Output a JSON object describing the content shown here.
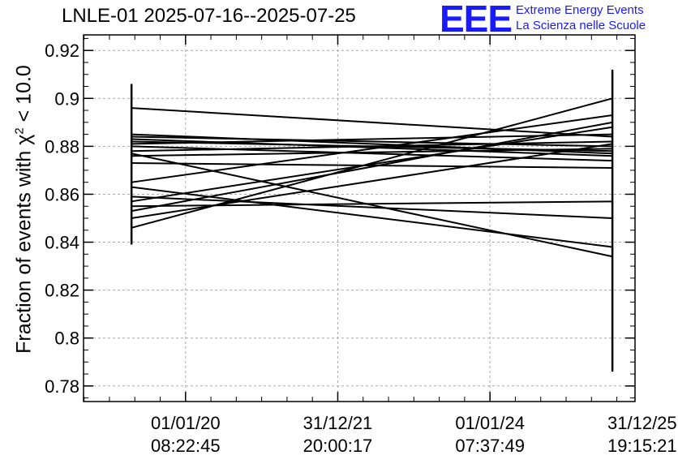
{
  "header": {
    "title": "LNLE-01 2025-07-16--2025-07-25",
    "logo": "EEE",
    "logo_line1": "Extreme Energy Events",
    "logo_line2": "La Scienza nelle Scuole",
    "logo_color": "#1a1aff"
  },
  "chart_data": {
    "type": "line",
    "title": "LNLE-01 2025-07-16--2025-07-25",
    "ylabel_prefix": "Fraction of events with ",
    "ylabel_symbol": "χ",
    "ylabel_sup": "2",
    "ylabel_suffix": " < 10.0",
    "ylim": [
      0.7735,
      0.9265
    ],
    "xlim": [
      0,
      1
    ],
    "grid": true,
    "y_ticks": [
      {
        "value": 0.78,
        "label": "0.78"
      },
      {
        "value": 0.8,
        "label": "0.8"
      },
      {
        "value": 0.82,
        "label": "0.82"
      },
      {
        "value": 0.84,
        "label": "0.84"
      },
      {
        "value": 0.86,
        "label": "0.86"
      },
      {
        "value": 0.88,
        "label": "0.88"
      },
      {
        "value": 0.9,
        "label": "0.9"
      },
      {
        "value": 0.92,
        "label": "0.92"
      }
    ],
    "x_ticks": [
      {
        "value": 0.185,
        "line1": "01/01/20",
        "line2": "08:22:45"
      },
      {
        "value": 0.461,
        "line1": "31/12/21",
        "line2": "20:00:17"
      },
      {
        "value": 0.737,
        "line1": "01/01/24",
        "line2": "07:37:49"
      },
      {
        "value": 1.013,
        "line1": "31/12/25",
        "line2": "19:15:21"
      }
    ],
    "x_left": 0.087,
    "x_right": 0.959,
    "error_bars": [
      {
        "x": 0.087,
        "low": 0.839,
        "high": 0.906
      },
      {
        "x": 0.959,
        "low": 0.786,
        "high": 0.912
      }
    ],
    "series": [
      {
        "values": [
          0.896,
          0.884
        ]
      },
      {
        "values": [
          0.885,
          0.877
        ]
      },
      {
        "values": [
          0.884,
          0.88
        ]
      },
      {
        "values": [
          0.883,
          0.876
        ]
      },
      {
        "values": [
          0.882,
          0.878
        ]
      },
      {
        "values": [
          0.881,
          0.885
        ]
      },
      {
        "values": [
          0.88,
          0.874
        ]
      },
      {
        "values": [
          0.878,
          0.882
        ]
      },
      {
        "values": [
          0.877,
          0.834
        ]
      },
      {
        "values": [
          0.876,
          0.879
        ]
      },
      {
        "values": [
          0.873,
          0.871
        ]
      },
      {
        "values": [
          0.865,
          0.893
        ]
      },
      {
        "values": [
          0.863,
          0.838
        ]
      },
      {
        "values": [
          0.859,
          0.85
        ]
      },
      {
        "values": [
          0.857,
          0.888
        ]
      },
      {
        "values": [
          0.855,
          0.857
        ]
      },
      {
        "values": [
          0.853,
          0.89
        ]
      },
      {
        "values": [
          0.85,
          0.881
        ]
      },
      {
        "values": [
          0.846,
          0.9
        ]
      }
    ]
  }
}
